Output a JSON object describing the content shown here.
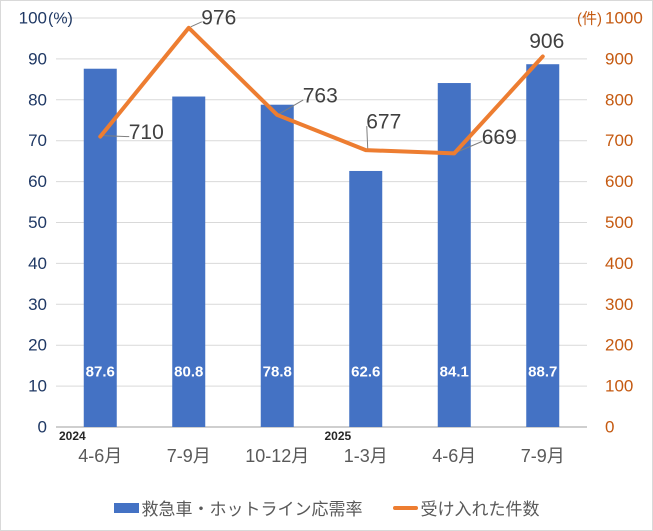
{
  "chart_data": {
    "type": "combo-bar-line",
    "title": "",
    "categories": [
      "4-6月",
      "7-9月",
      "10-12月",
      "1-3月",
      "4-6月",
      "7-9月"
    ],
    "year_markers": [
      {
        "label": "2024",
        "category_index": 0
      },
      {
        "label": "2025",
        "category_index": 3
      }
    ],
    "series": [
      {
        "name": "救急車・ホットライン応需率",
        "type": "bar",
        "axis": "left",
        "color": "#4472C4",
        "values": [
          87.6,
          80.8,
          78.8,
          62.6,
          84.1,
          88.7
        ],
        "value_label_color": "#ffffff"
      },
      {
        "name": "受け入れた件数",
        "type": "line",
        "axis": "right",
        "color": "#ED7D31",
        "values": [
          710,
          976,
          763,
          677,
          669,
          906
        ],
        "value_label_color": "#404040",
        "label_offsets": [
          {
            "dx": 46,
            "dy": -4,
            "leader": true
          },
          {
            "dx": 30,
            "dy": -10,
            "leader": true
          },
          {
            "dx": 43,
            "dy": -19,
            "leader": true
          },
          {
            "dx": 18,
            "dy": -28,
            "leader": true
          },
          {
            "dx": 45,
            "dy": -16,
            "leader": true
          },
          {
            "dx": 4,
            "dy": -15,
            "leader": false
          }
        ]
      }
    ],
    "left_axis": {
      "unit": "(%)",
      "min": 0,
      "max": 100,
      "ticks": [
        0,
        10,
        20,
        30,
        40,
        50,
        60,
        70,
        80,
        90,
        100
      ],
      "color": "#1F3864"
    },
    "right_axis": {
      "unit": "(件)",
      "min": 0,
      "max": 1000,
      "ticks": [
        0,
        100,
        200,
        300,
        400,
        500,
        600,
        700,
        800,
        900,
        1000
      ],
      "color": "#C55A11"
    },
    "grid": true,
    "gridline_color": "#D9D9D9",
    "axis_line_color": "#BFBFBF",
    "leader_line_color": "#7F7F7F",
    "category_label_color": "#595959",
    "year_label_color": "#262626",
    "legend_position": "bottom"
  },
  "legend": {
    "items": [
      {
        "label": "救急車・ホットライン応需率",
        "swatch": "bar"
      },
      {
        "label": "受け入れた件数",
        "swatch": "line"
      }
    ]
  }
}
